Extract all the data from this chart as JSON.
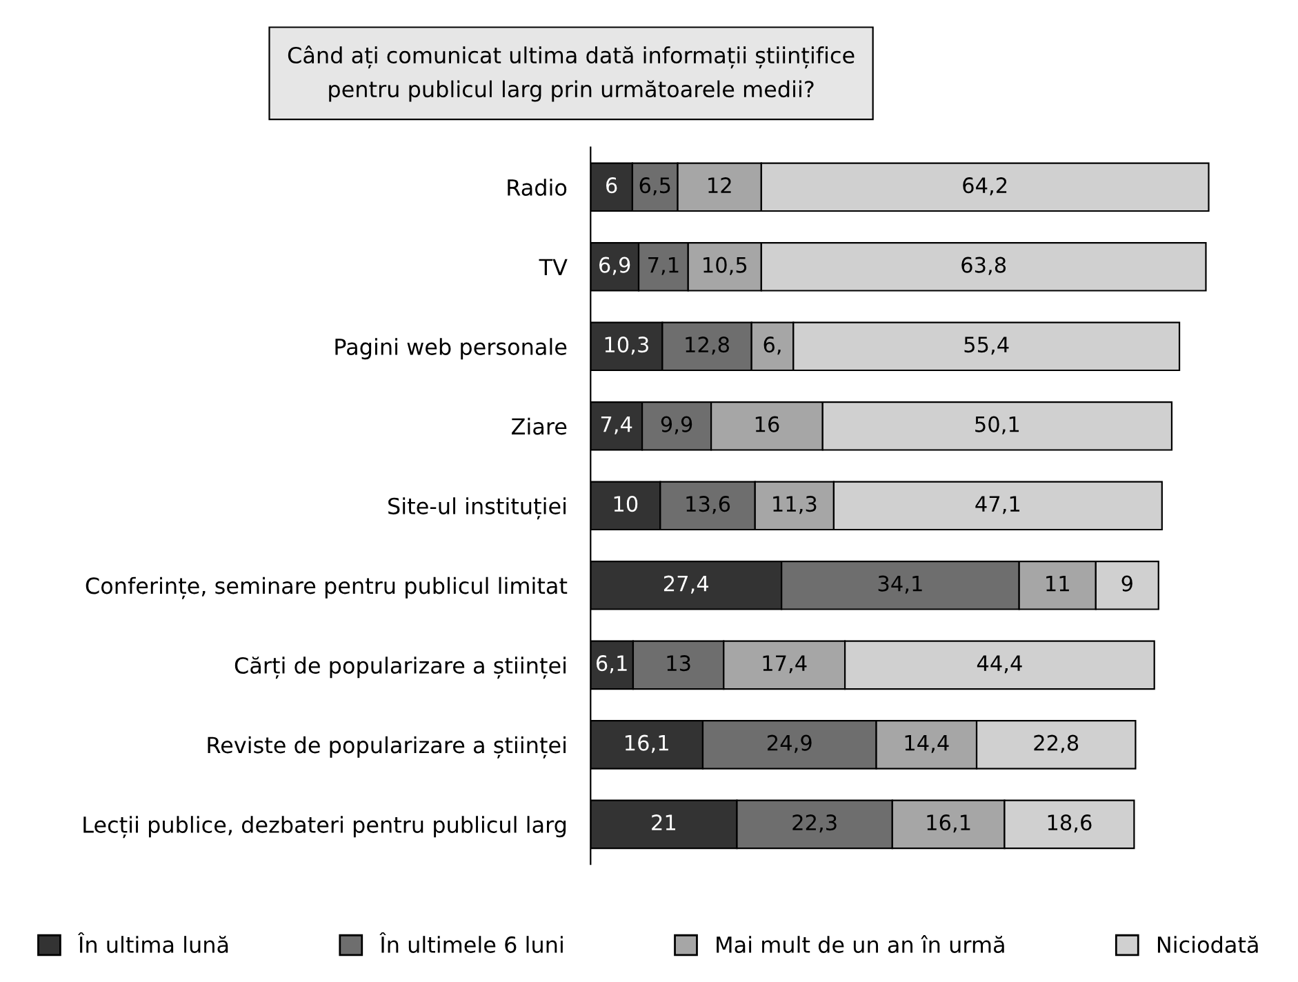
{
  "chart_data": {
    "type": "bar",
    "orientation": "horizontal",
    "stacked": true,
    "title": "Când ați comunicat ultima dată informații științifice\npentru publicul larg prin următoarele medii?",
    "categories": [
      "Radio",
      "TV",
      "Pagini web personale",
      "Ziare",
      "Site-ul instituției",
      "Conferințe, seminare pentru publicul limitat",
      "Cărți de popularizare a științei",
      "Reviste de popularizare a științei",
      "Lecții publice, dezbateri pentru publicul larg"
    ],
    "series": [
      {
        "name": "În ultima lună",
        "color": "#333333",
        "values": [
          6,
          6.9,
          10.3,
          7.4,
          10,
          27.4,
          6.1,
          16.1,
          21
        ],
        "value_labels": [
          "6",
          "6,9",
          "10,3",
          "7,4",
          "10",
          "27,4",
          "6,1",
          "16,1",
          "21"
        ]
      },
      {
        "name": "În ultimele 6 luni",
        "color": "#6e6e6e",
        "values": [
          6.5,
          7.1,
          12.8,
          9.9,
          13.6,
          34.1,
          13,
          24.9,
          22.3
        ],
        "value_labels": [
          "6,5",
          "7,1",
          "12,8",
          "9,9",
          "13,6",
          "34,1",
          "13",
          "24,9",
          "22,3"
        ]
      },
      {
        "name": "Mai mult de un an în urmă",
        "color": "#a6a6a6",
        "values": [
          12,
          10.5,
          6,
          16,
          11.3,
          11,
          17.4,
          14.4,
          16.1
        ],
        "value_labels": [
          "12",
          "10,5",
          "6,",
          "16",
          "11,3",
          "11",
          "17,4",
          "14,4",
          "16,1"
        ]
      },
      {
        "name": "Niciodată",
        "color": "#d0d0d0",
        "values": [
          64.2,
          63.8,
          55.4,
          50.1,
          47.1,
          9,
          44.4,
          22.8,
          18.6
        ],
        "value_labels": [
          "64,2",
          "63,8",
          "55,4",
          "50,1",
          "47,1",
          "9",
          "44,4",
          "22,8",
          "18,6"
        ]
      }
    ],
    "legend": "bottom",
    "grid": false
  }
}
